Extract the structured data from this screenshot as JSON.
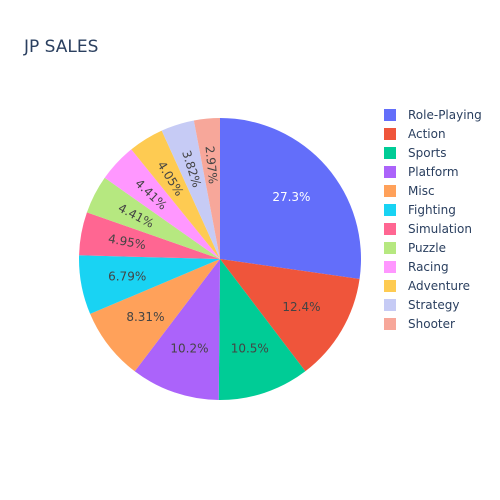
{
  "chart_data": {
    "type": "pie",
    "title": "JP SALES",
    "legend_position": "right",
    "slices": [
      {
        "label": "Role-Playing",
        "percent": 27.3,
        "percent_label": "27.3%",
        "color": "#636efa"
      },
      {
        "label": "Action",
        "percent": 12.4,
        "percent_label": "12.4%",
        "color": "#EF553B"
      },
      {
        "label": "Sports",
        "percent": 10.5,
        "percent_label": "10.5%",
        "color": "#00cc96"
      },
      {
        "label": "Platform",
        "percent": 10.2,
        "percent_label": "10.2%",
        "color": "#ab63fa"
      },
      {
        "label": "Misc",
        "percent": 8.31,
        "percent_label": "8.31%",
        "color": "#FFA15A"
      },
      {
        "label": "Fighting",
        "percent": 6.79,
        "percent_label": "6.79%",
        "color": "#19d3f3"
      },
      {
        "label": "Simulation",
        "percent": 4.95,
        "percent_label": "4.95%",
        "color": "#FF6692"
      },
      {
        "label": "Puzzle",
        "percent": 4.41,
        "percent_label": "4.41%",
        "color": "#B6E880"
      },
      {
        "label": "Racing",
        "percent": 4.41,
        "percent_label": "4.41%",
        "color": "#FF97FF"
      },
      {
        "label": "Adventure",
        "percent": 4.05,
        "percent_label": "4.05%",
        "color": "#FECB52"
      },
      {
        "label": "Strategy",
        "percent": 3.82,
        "percent_label": "3.82%",
        "color": "#c6cbf5"
      },
      {
        "label": "Shooter",
        "percent": 2.97,
        "percent_label": "2.97%",
        "color": "#f7a79a"
      }
    ]
  }
}
